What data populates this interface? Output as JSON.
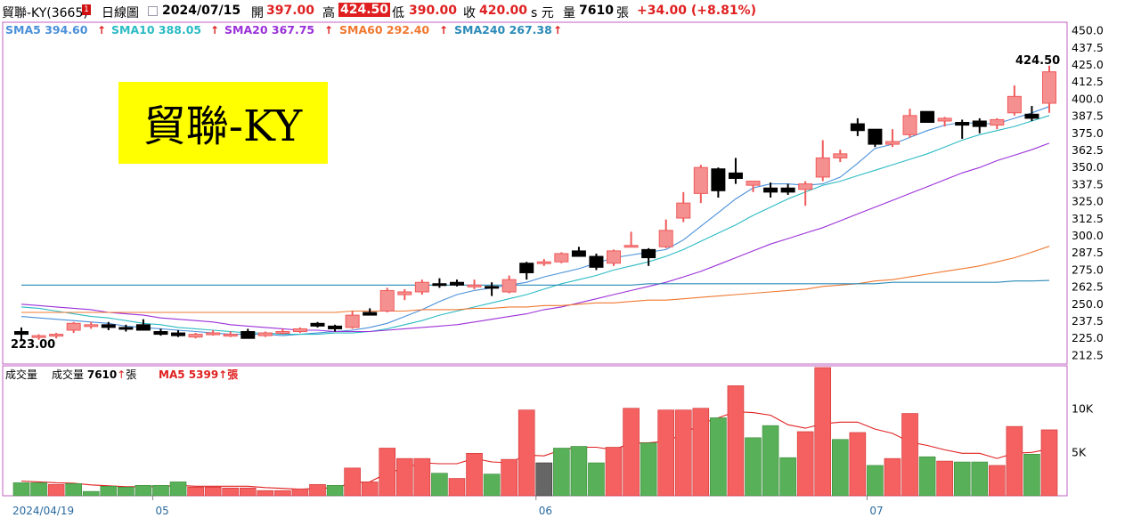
{
  "header": {
    "stock_name": "貿聯-KY(3665)",
    "chart_mode": "日線圖",
    "date": "2024/07/15",
    "open_label": "開",
    "open": "397.00",
    "high_label": "高",
    "high": "424.50",
    "low_label": "低",
    "low": "390.00",
    "close_label": "收",
    "close": "420.00",
    "currency_label": "s 元",
    "volume_label": "量",
    "volume": "7610",
    "volume_unit": "張",
    "change": "+34.00 (+8.81%)"
  },
  "sma_legend": [
    {
      "label": "SMA5",
      "value": "394.60",
      "color": "#4a90d9"
    },
    {
      "label": "SMA10",
      "value": "388.05",
      "color": "#2bbbc4"
    },
    {
      "label": "SMA20",
      "value": "367.75",
      "color": "#9b30d9"
    },
    {
      "label": "SMA60",
      "value": "292.40",
      "color": "#f07830"
    },
    {
      "label": "SMA240",
      "value": "267.38",
      "color": "#2a8ab8"
    }
  ],
  "title_box": {
    "text": "貿聯-KY",
    "bg": "#ffff00"
  },
  "annotations": {
    "max_label": "424.50",
    "min_label": "223.00"
  },
  "volume_legend": {
    "panel_label": "成交量",
    "vol_label": "成交量",
    "vol_value": "7610",
    "vol_unit": "張",
    "ma_label": "MA5",
    "ma_value": "5399",
    "ma_unit": "張"
  },
  "colors": {
    "up": "#f05a5a",
    "up_fill": "#f59090",
    "down": "#000000",
    "vol_up": "#f56060",
    "vol_down": "#58b058",
    "vol_other": "#666666",
    "frame": "#c060c0"
  },
  "chart_data": {
    "type": "candlestick",
    "price_ylim": [
      206.25,
      456.25
    ],
    "price_ticks": [
      "450.0",
      "437.5",
      "425.0",
      "412.5",
      "400.0",
      "387.5",
      "375.0",
      "362.5",
      "350.0",
      "337.5",
      "325.0",
      "312.5",
      "300.0",
      "287.5",
      "275.0",
      "262.5",
      "250.0",
      "237.5",
      "225.0",
      "212.5"
    ],
    "volume_ylim": [
      0,
      15000
    ],
    "volume_ticks": [
      "10K",
      "5K"
    ],
    "x_labels": [
      {
        "label": "2024/04/19",
        "index": 0
      },
      {
        "label": "05",
        "index": 8
      },
      {
        "label": "06",
        "index": 30
      },
      {
        "label": "07",
        "index": 49
      }
    ],
    "candles": [
      {
        "o": 230,
        "h": 233,
        "l": 223,
        "c": 228
      },
      {
        "o": 226,
        "h": 228,
        "l": 224,
        "c": 227
      },
      {
        "o": 227,
        "h": 229,
        "l": 225,
        "c": 228
      },
      {
        "o": 231,
        "h": 237,
        "l": 229,
        "c": 236
      },
      {
        "o": 234,
        "h": 237,
        "l": 232,
        "c": 235
      },
      {
        "o": 235,
        "h": 237,
        "l": 231,
        "c": 233
      },
      {
        "o": 233,
        "h": 235,
        "l": 230,
        "c": 232
      },
      {
        "o": 235,
        "h": 239,
        "l": 232,
        "c": 231
      },
      {
        "o": 230,
        "h": 232,
        "l": 227,
        "c": 228
      },
      {
        "o": 229,
        "h": 231,
        "l": 226,
        "c": 227
      },
      {
        "o": 226,
        "h": 229,
        "l": 225,
        "c": 228
      },
      {
        "o": 229,
        "h": 231,
        "l": 227,
        "c": 229
      },
      {
        "o": 228,
        "h": 230,
        "l": 226,
        "c": 228
      },
      {
        "o": 230,
        "h": 232,
        "l": 225,
        "c": 225
      },
      {
        "o": 227,
        "h": 230,
        "l": 226,
        "c": 229
      },
      {
        "o": 229,
        "h": 232,
        "l": 228,
        "c": 230
      },
      {
        "o": 230,
        "h": 233,
        "l": 229,
        "c": 232
      },
      {
        "o": 236,
        "h": 237,
        "l": 233,
        "c": 234
      },
      {
        "o": 234,
        "h": 235,
        "l": 230,
        "c": 232
      },
      {
        "o": 233,
        "h": 245,
        "l": 232,
        "c": 242
      },
      {
        "o": 244,
        "h": 247,
        "l": 242,
        "c": 242
      },
      {
        "o": 245,
        "h": 262,
        "l": 244,
        "c": 260
      },
      {
        "o": 257,
        "h": 261,
        "l": 253,
        "c": 259
      },
      {
        "o": 259,
        "h": 268,
        "l": 257,
        "c": 266
      },
      {
        "o": 265,
        "h": 269,
        "l": 262,
        "c": 264
      },
      {
        "o": 266,
        "h": 268,
        "l": 263,
        "c": 264
      },
      {
        "o": 263,
        "h": 268,
        "l": 261,
        "c": 264
      },
      {
        "o": 263,
        "h": 266,
        "l": 256,
        "c": 262
      },
      {
        "o": 259,
        "h": 271,
        "l": 258,
        "c": 268
      },
      {
        "o": 280,
        "h": 281,
        "l": 268,
        "c": 273
      },
      {
        "o": 280,
        "h": 283,
        "l": 278,
        "c": 281
      },
      {
        "o": 281,
        "h": 288,
        "l": 280,
        "c": 287
      },
      {
        "o": 289,
        "h": 292,
        "l": 285,
        "c": 285
      },
      {
        "o": 285,
        "h": 287,
        "l": 275,
        "c": 277
      },
      {
        "o": 280,
        "h": 290,
        "l": 278,
        "c": 289
      },
      {
        "o": 293,
        "h": 303,
        "l": 292,
        "c": 293
      },
      {
        "o": 290,
        "h": 291,
        "l": 278,
        "c": 284
      },
      {
        "o": 292,
        "h": 312,
        "l": 291,
        "c": 304
      },
      {
        "o": 313,
        "h": 332,
        "l": 310,
        "c": 324
      },
      {
        "o": 331,
        "h": 352,
        "l": 324,
        "c": 350
      },
      {
        "o": 349,
        "h": 350,
        "l": 328,
        "c": 333
      },
      {
        "o": 346,
        "h": 357,
        "l": 338,
        "c": 342
      },
      {
        "o": 337,
        "h": 340,
        "l": 332,
        "c": 340
      },
      {
        "o": 335,
        "h": 339,
        "l": 328,
        "c": 332
      },
      {
        "o": 335,
        "h": 338,
        "l": 330,
        "c": 332
      },
      {
        "o": 334,
        "h": 340,
        "l": 322,
        "c": 338
      },
      {
        "o": 343,
        "h": 370,
        "l": 340,
        "c": 357
      },
      {
        "o": 357,
        "h": 363,
        "l": 354,
        "c": 360
      },
      {
        "o": 382,
        "h": 386,
        "l": 373,
        "c": 377
      },
      {
        "o": 378,
        "h": 378,
        "l": 365,
        "c": 367
      },
      {
        "o": 367,
        "h": 378,
        "l": 365,
        "c": 369
      },
      {
        "o": 374,
        "h": 393,
        "l": 372,
        "c": 388
      },
      {
        "o": 391,
        "h": 391,
        "l": 383,
        "c": 383
      },
      {
        "o": 384,
        "h": 387,
        "l": 380,
        "c": 386
      },
      {
        "o": 383,
        "h": 385,
        "l": 371,
        "c": 381
      },
      {
        "o": 384,
        "h": 386,
        "l": 375,
        "c": 380
      },
      {
        "o": 381,
        "h": 386,
        "l": 378,
        "c": 385
      },
      {
        "o": 390,
        "h": 410,
        "l": 388,
        "c": 402
      },
      {
        "o": 389,
        "h": 395,
        "l": 384,
        "c": 386
      },
      {
        "o": 397,
        "h": 424.5,
        "l": 390,
        "c": 420
      }
    ],
    "volumes": [
      1500,
      1500,
      1300,
      1400,
      500,
      1100,
      1000,
      1200,
      1200,
      1600,
      1000,
      1000,
      900,
      900,
      600,
      600,
      800,
      1300,
      1200,
      3200,
      1600,
      5500,
      4300,
      4300,
      2600,
      2000,
      4900,
      2500,
      4200,
      9900,
      3800,
      5500,
      5700,
      3800,
      5600,
      10100,
      6100,
      9900,
      9900,
      10100,
      9000,
      12700,
      6700,
      8100,
      4400,
      7400,
      14800,
      6500,
      7300,
      3500,
      4300,
      9500,
      4500,
      4000,
      3900,
      3900,
      3500,
      8000,
      4800,
      7610
    ],
    "volume_colors": [
      "d",
      "d",
      "u",
      "d",
      "d",
      "d",
      "d",
      "d",
      "d",
      "d",
      "u",
      "u",
      "u",
      "u",
      "u",
      "u",
      "u",
      "u",
      "d",
      "u",
      "u",
      "u",
      "u",
      "u",
      "d",
      "u",
      "u",
      "d",
      "u",
      "u",
      "o",
      "d",
      "d",
      "d",
      "u",
      "u",
      "d",
      "u",
      "u",
      "u",
      "d",
      "u",
      "d",
      "d",
      "d",
      "u",
      "u",
      "d",
      "u",
      "d",
      "u",
      "u",
      "d",
      "u",
      "d",
      "d",
      "u",
      "u",
      "d",
      "u"
    ],
    "series": [
      {
        "name": "SMA5",
        "values": [
          241,
          240,
          239,
          238,
          237,
          236,
          234,
          233,
          232,
          231,
          230,
          229,
          228,
          228,
          228,
          227,
          228,
          229,
          230,
          231,
          233,
          236,
          241,
          246,
          252,
          257,
          260,
          262,
          264,
          266,
          270,
          273,
          276,
          280,
          284,
          286,
          288,
          290,
          297,
          307,
          317,
          327,
          335,
          338,
          338,
          337,
          338,
          343,
          353,
          364,
          367,
          372,
          377,
          381,
          383,
          382,
          382,
          386,
          390,
          394.6
        ],
        "color": "#4a90d9"
      },
      {
        "name": "SMA10",
        "values": [
          248,
          247,
          245,
          243,
          241,
          240,
          238,
          236,
          235,
          233,
          232,
          231,
          230,
          229,
          229,
          228,
          228,
          228,
          229,
          229,
          230,
          232,
          235,
          238,
          242,
          245,
          248,
          251,
          254,
          257,
          261,
          265,
          268,
          271,
          275,
          278,
          281,
          285,
          290,
          296,
          302,
          308,
          315,
          321,
          327,
          332,
          337,
          340,
          344,
          348,
          352,
          356,
          360,
          365,
          370,
          374,
          377,
          380,
          384,
          388.05
        ],
        "color": "#2bbbc4"
      },
      {
        "name": "SMA20",
        "values": [
          250,
          249,
          248,
          247,
          246,
          244,
          243,
          242,
          240,
          239,
          238,
          237,
          235,
          234,
          233,
          232,
          231,
          231,
          230,
          230,
          230,
          231,
          232,
          233,
          234,
          235,
          237,
          239,
          241,
          243,
          246,
          248,
          251,
          254,
          257,
          260,
          263,
          266,
          270,
          274,
          279,
          284,
          289,
          294,
          298,
          302,
          306,
          311,
          316,
          321,
          326,
          331,
          336,
          341,
          346,
          350,
          355,
          359,
          363,
          367.75
        ],
        "color": "#9b30d9"
      },
      {
        "name": "SMA60",
        "values": [
          244,
          244,
          244,
          244,
          244,
          244,
          244,
          244,
          244,
          244,
          244,
          244,
          244,
          244,
          244,
          244,
          244,
          244,
          244,
          245,
          245,
          245,
          245,
          246,
          246,
          246,
          247,
          247,
          248,
          248,
          249,
          249,
          250,
          251,
          251,
          252,
          253,
          253,
          254,
          255,
          256,
          257,
          258,
          259,
          260,
          261,
          263,
          264,
          265,
          267,
          268,
          270,
          272,
          274,
          276,
          278,
          281,
          284,
          288,
          292.4
        ],
        "color": "#f07830"
      },
      {
        "name": "SMA240",
        "values": [
          264,
          264,
          264,
          264,
          264,
          264,
          264,
          264,
          264,
          264,
          264,
          264,
          264,
          264,
          264,
          264,
          264,
          264,
          264,
          264,
          264,
          264,
          264,
          264,
          264,
          264,
          264,
          264,
          264,
          264,
          264,
          264,
          264,
          264,
          264,
          264,
          265,
          265,
          265,
          265,
          265,
          265,
          265,
          265,
          265,
          265,
          265,
          265,
          265,
          265,
          266,
          266,
          266,
          266,
          266,
          266,
          266,
          267,
          267,
          267.38
        ],
        "color": "#2a8ab8"
      },
      {
        "name": "MA5",
        "values": [
          1700,
          1600,
          1500,
          1450,
          1250,
          1150,
          1050,
          1050,
          1050,
          1200,
          1100,
          1100,
          1100,
          1100,
          950,
          850,
          750,
          850,
          900,
          1500,
          1600,
          2600,
          3200,
          3800,
          3700,
          3700,
          4300,
          3900,
          3800,
          4700,
          4600,
          5300,
          5600,
          5600,
          5300,
          6100,
          6100,
          6300,
          7100,
          8300,
          9000,
          9700,
          9600,
          9300,
          8200,
          7800,
          8300,
          8500,
          8500,
          7700,
          7200,
          6200,
          5800,
          5300,
          4900,
          4900,
          4300,
          4900,
          5000,
          5399
        ],
        "color": "#e02020"
      }
    ]
  }
}
